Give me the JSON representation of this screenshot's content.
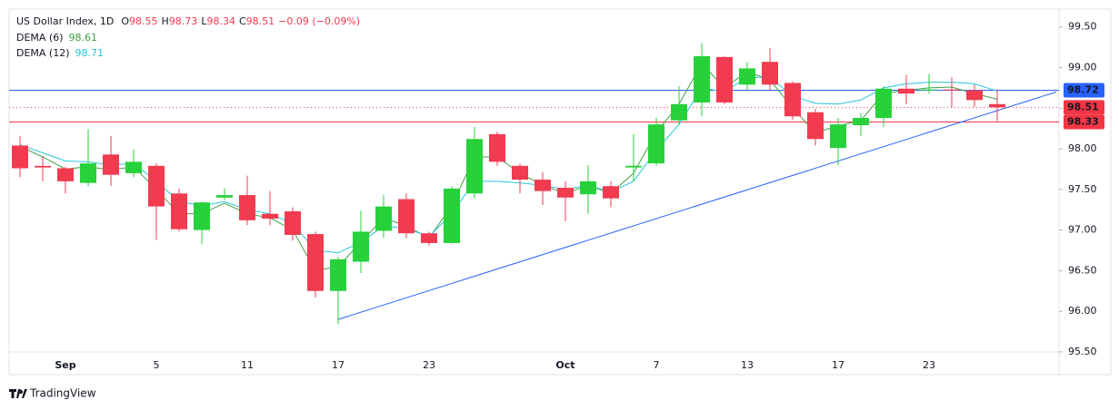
{
  "chart_data": {
    "type": "candlestick",
    "title": "US Dollar Index, 1D",
    "ohlc_labels": [
      "O",
      "H",
      "L",
      "C"
    ],
    "change_label": "−0.09 (−0.09%)",
    "categories": [
      null,
      null,
      "Sep",
      null,
      null,
      null,
      "5",
      null,
      null,
      null,
      "11",
      null,
      null,
      null,
      "17",
      null,
      null,
      null,
      "23",
      null,
      null,
      null,
      null,
      null,
      "Oct",
      null,
      null,
      null,
      "7",
      null,
      null,
      null,
      "13",
      null,
      null,
      null,
      "17",
      null,
      null,
      null,
      "23",
      null,
      null,
      null
    ],
    "open": [
      98.04,
      97.79,
      97.76,
      97.58,
      97.93,
      97.7,
      97.79,
      97.45,
      97.0,
      97.4,
      97.43,
      97.2,
      97.23,
      96.95,
      96.25,
      96.61,
      96.99,
      97.38,
      96.96,
      96.84,
      97.45,
      98.18,
      97.79,
      97.62,
      97.52,
      97.44,
      97.54,
      97.77,
      97.82,
      98.35,
      98.57,
      99.13,
      98.79,
      99.07,
      98.81,
      98.45,
      98.01,
      98.29,
      98.38,
      98.74,
      98.72,
      98.73,
      98.72,
      98.55
    ],
    "high": [
      98.16,
      97.91,
      97.78,
      98.24,
      98.16,
      97.99,
      97.82,
      97.51,
      97.35,
      97.51,
      97.67,
      97.48,
      97.28,
      96.98,
      96.67,
      97.24,
      97.43,
      97.45,
      96.98,
      97.54,
      98.27,
      98.21,
      97.82,
      97.71,
      97.6,
      97.8,
      97.6,
      98.18,
      98.38,
      98.77,
      99.3,
      99.14,
      99.07,
      99.24,
      98.83,
      98.49,
      98.38,
      98.44,
      98.77,
      98.91,
      98.92,
      98.88,
      98.79,
      98.73
    ],
    "low": [
      97.65,
      97.6,
      97.45,
      97.54,
      97.54,
      97.65,
      96.88,
      96.98,
      96.83,
      97.37,
      97.06,
      97.06,
      96.87,
      96.17,
      95.84,
      96.47,
      96.9,
      96.9,
      96.81,
      96.83,
      97.39,
      97.79,
      97.45,
      97.31,
      97.11,
      97.2,
      97.28,
      97.6,
      97.79,
      98.29,
      98.4,
      98.55,
      98.72,
      98.72,
      98.36,
      98.04,
      97.8,
      98.16,
      98.27,
      98.55,
      98.68,
      98.51,
      98.51,
      98.34
    ],
    "close": [
      97.76,
      97.77,
      97.6,
      97.82,
      97.68,
      97.84,
      97.29,
      97.01,
      97.34,
      97.43,
      97.12,
      97.14,
      96.94,
      96.25,
      96.64,
      96.98,
      97.29,
      96.96,
      96.84,
      97.51,
      98.12,
      97.84,
      97.62,
      97.48,
      97.4,
      97.6,
      97.39,
      97.79,
      98.3,
      98.55,
      99.14,
      98.57,
      98.99,
      98.79,
      98.4,
      98.12,
      98.3,
      98.38,
      98.74,
      98.68,
      98.73,
      98.72,
      98.6,
      98.51
    ],
    "up_color": "#26d13a",
    "down_color": "#f23b4f",
    "series": [
      {
        "name": "DEMA (6)",
        "color": "#43a047",
        "values": [
          98.03,
          97.9,
          97.75,
          97.78,
          97.74,
          97.78,
          97.5,
          97.2,
          97.2,
          97.33,
          97.2,
          97.15,
          97.0,
          96.5,
          96.55,
          96.85,
          97.15,
          97.05,
          96.9,
          97.3,
          97.9,
          97.9,
          97.7,
          97.55,
          97.45,
          97.55,
          97.45,
          97.7,
          98.2,
          98.55,
          99.05,
          98.75,
          98.95,
          98.85,
          98.5,
          98.2,
          98.28,
          98.35,
          98.68,
          98.72,
          98.75,
          98.76,
          98.68,
          98.61
        ]
      },
      {
        "name": "DEMA (12)",
        "color": "#26c6da",
        "values": [
          98.05,
          97.95,
          97.85,
          97.84,
          97.8,
          97.82,
          97.6,
          97.35,
          97.3,
          97.35,
          97.25,
          97.2,
          97.08,
          96.75,
          96.72,
          96.85,
          97.05,
          97.02,
          96.92,
          97.2,
          97.6,
          97.6,
          97.58,
          97.55,
          97.5,
          97.55,
          97.47,
          97.6,
          97.98,
          98.3,
          98.75,
          98.7,
          98.88,
          98.88,
          98.65,
          98.56,
          98.55,
          98.6,
          98.75,
          98.8,
          98.82,
          98.82,
          98.8,
          98.71
        ]
      }
    ],
    "ylim": [
      95.22,
      99.72
    ],
    "yticks": [
      {
        "value": 95.5,
        "label": "95.50"
      },
      {
        "value": 96,
        "label": "96.00"
      },
      {
        "value": 96.5,
        "label": "96.50"
      },
      {
        "value": 97,
        "label": "97.00"
      },
      {
        "value": 97.5,
        "label": "97.50"
      },
      {
        "value": 98,
        "label": "98.00"
      },
      {
        "value": 98.5,
        "label": "98.50"
      },
      {
        "value": 99,
        "label": "99.00"
      },
      {
        "value": 99.5,
        "label": "99.50"
      }
    ],
    "price_lines": [
      {
        "value": 98.72,
        "color": "#2962ff",
        "style": "solid"
      },
      {
        "value": 98.51,
        "color": "#f23645",
        "style": "dotted"
      },
      {
        "value": 98.33,
        "color": "#f23645",
        "style": "solid"
      }
    ],
    "trendline": {
      "color": "#2962ff",
      "x": [
        14,
        45.6
      ],
      "values": [
        95.9,
        98.7
      ]
    },
    "grid": false
  },
  "footer": {
    "brand": "TradingView"
  }
}
